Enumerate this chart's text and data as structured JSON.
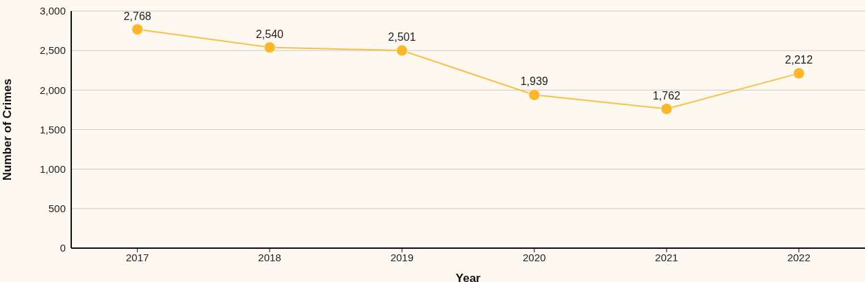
{
  "chart_data": {
    "type": "line",
    "xlabel": "Year",
    "ylabel": "Number of Crimes",
    "categories": [
      "2017",
      "2018",
      "2019",
      "2020",
      "2021",
      "2022"
    ],
    "series": [
      {
        "color": "#fbb62a",
        "values": [
          2768,
          2540,
          2501,
          1939,
          1762,
          2212
        ],
        "value_labels": [
          "2,768",
          "2,540",
          "2,501",
          "1,939",
          "1,762",
          "2,212"
        ]
      }
    ],
    "ylim": [
      0,
      3000
    ],
    "yticks": [
      {
        "value": 0,
        "label": "0"
      },
      {
        "value": 500,
        "label": "500"
      },
      {
        "value": 1000,
        "label": "1,000"
      },
      {
        "value": 1500,
        "label": "1,500"
      },
      {
        "value": 2000,
        "label": "2,000"
      },
      {
        "value": 2500,
        "label": "2,500"
      },
      {
        "value": 3000,
        "label": "3,000"
      }
    ],
    "grid": "y",
    "marker": "circle",
    "line_style": "solid"
  }
}
